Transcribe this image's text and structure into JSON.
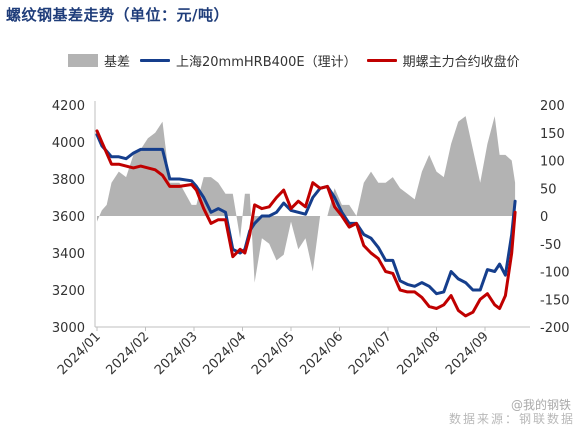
{
  "title": "螺纹钢基差走势（单位：元/吨）",
  "source_text": "数据来源：钢联数据",
  "watermark_text": "@我的钢铁",
  "legend": [
    {
      "label": "基差",
      "kind": "area",
      "color": "#b3b3b3"
    },
    {
      "label": "上海20mmHRB400E（理计）",
      "kind": "line",
      "color": "#153e8c"
    },
    {
      "label": "期螺主力合约收盘价",
      "kind": "line",
      "color": "#c00000"
    }
  ],
  "chart_data": {
    "type": "line",
    "title": "螺纹钢基差走势（单位：元/吨）",
    "xlabel": "",
    "ylabel": "",
    "x_tick_labels": [
      "2024/01",
      "2024/02",
      "2024/03",
      "2024/04",
      "2024/05",
      "2024/06",
      "2024/07",
      "2024/08",
      "2024/09"
    ],
    "y_left": {
      "range": [
        3000,
        4200
      ],
      "ticks": [
        3000,
        3200,
        3400,
        3600,
        3800,
        4000,
        4200
      ]
    },
    "y_right": {
      "range": [
        -200,
        200
      ],
      "ticks": [
        -200,
        -150,
        -100,
        -50,
        0,
        50,
        100,
        150,
        200
      ]
    },
    "grid": false,
    "legend_position": "top",
    "series": [
      {
        "name": "上海20mmHRB400E（理计）",
        "axis": "left",
        "color": "#153e8c",
        "x": [
          0,
          0.1,
          0.2,
          0.3,
          0.45,
          0.6,
          0.75,
          0.9,
          1.05,
          1.2,
          1.35,
          1.5,
          1.7,
          1.95,
          2.05,
          2.2,
          2.35,
          2.5,
          2.65,
          2.8,
          2.95,
          3.05,
          3.15,
          3.25,
          3.4,
          3.55,
          3.7,
          3.85,
          4.0,
          4.15,
          4.3,
          4.45,
          4.6,
          4.75,
          4.9,
          5.05,
          5.2,
          5.35,
          5.5,
          5.65,
          5.8,
          5.95,
          6.1,
          6.25,
          6.4,
          6.55,
          6.7,
          6.85,
          7.0,
          7.15,
          7.3,
          7.45,
          7.6,
          7.75,
          7.9,
          8.05,
          8.2,
          8.3,
          8.42,
          8.55,
          8.62
        ],
        "y": [
          4040,
          3980,
          3950,
          3920,
          3920,
          3910,
          3940,
          3960,
          3960,
          3960,
          3960,
          3800,
          3800,
          3790,
          3760,
          3700,
          3620,
          3640,
          3620,
          3420,
          3400,
          3420,
          3520,
          3560,
          3600,
          3600,
          3620,
          3670,
          3630,
          3620,
          3610,
          3700,
          3750,
          3760,
          3700,
          3620,
          3560,
          3560,
          3500,
          3480,
          3430,
          3360,
          3360,
          3250,
          3230,
          3220,
          3240,
          3220,
          3180,
          3190,
          3300,
          3260,
          3240,
          3200,
          3200,
          3310,
          3300,
          3340,
          3280,
          3500,
          3680
        ]
      },
      {
        "name": "期螺主力合约收盘价",
        "axis": "left",
        "color": "#c00000",
        "x": [
          0,
          0.1,
          0.2,
          0.3,
          0.45,
          0.6,
          0.75,
          0.9,
          1.05,
          1.2,
          1.35,
          1.5,
          1.7,
          1.95,
          2.05,
          2.2,
          2.35,
          2.5,
          2.65,
          2.8,
          2.95,
          3.05,
          3.15,
          3.25,
          3.4,
          3.55,
          3.7,
          3.85,
          4.0,
          4.15,
          4.3,
          4.45,
          4.6,
          4.75,
          4.9,
          5.05,
          5.2,
          5.35,
          5.5,
          5.65,
          5.8,
          5.95,
          6.1,
          6.25,
          6.4,
          6.55,
          6.7,
          6.85,
          7.0,
          7.15,
          7.3,
          7.45,
          7.6,
          7.75,
          7.9,
          8.05,
          8.2,
          8.3,
          8.42,
          8.55,
          8.62
        ],
        "y": [
          4060,
          4000,
          3940,
          3880,
          3880,
          3870,
          3860,
          3870,
          3860,
          3850,
          3820,
          3760,
          3760,
          3770,
          3740,
          3640,
          3560,
          3580,
          3580,
          3380,
          3420,
          3400,
          3500,
          3660,
          3640,
          3650,
          3700,
          3740,
          3640,
          3680,
          3650,
          3780,
          3750,
          3760,
          3650,
          3600,
          3540,
          3560,
          3440,
          3400,
          3370,
          3300,
          3290,
          3200,
          3190,
          3190,
          3160,
          3110,
          3100,
          3120,
          3170,
          3090,
          3060,
          3080,
          3150,
          3180,
          3120,
          3100,
          3170,
          3400,
          3620
        ]
      },
      {
        "name": "基差",
        "axis": "right",
        "color": "#b3b3b3",
        "kind": "area",
        "x": [
          0,
          0.1,
          0.2,
          0.3,
          0.45,
          0.6,
          0.75,
          0.9,
          1.05,
          1.2,
          1.35,
          1.5,
          1.7,
          1.95,
          2.05,
          2.2,
          2.35,
          2.5,
          2.65,
          2.8,
          2.95,
          3.05,
          3.15,
          3.25,
          3.4,
          3.55,
          3.7,
          3.85,
          4.0,
          4.15,
          4.3,
          4.45,
          4.6,
          4.75,
          4.9,
          5.05,
          5.2,
          5.35,
          5.5,
          5.65,
          5.8,
          5.95,
          6.1,
          6.25,
          6.4,
          6.55,
          6.7,
          6.85,
          7.0,
          7.15,
          7.3,
          7.45,
          7.6,
          7.75,
          7.9,
          8.05,
          8.2,
          8.3,
          8.42,
          8.55,
          8.62
        ],
        "y": [
          -10,
          10,
          20,
          60,
          80,
          70,
          110,
          120,
          140,
          150,
          170,
          60,
          60,
          20,
          20,
          70,
          70,
          60,
          40,
          40,
          -40,
          40,
          40,
          -120,
          -40,
          -50,
          -80,
          -70,
          -10,
          -60,
          -40,
          -100,
          0,
          0,
          50,
          20,
          20,
          0,
          60,
          80,
          60,
          60,
          70,
          50,
          40,
          30,
          80,
          110,
          80,
          70,
          130,
          170,
          180,
          120,
          60,
          130,
          180,
          110,
          110,
          100,
          60
        ]
      }
    ]
  }
}
